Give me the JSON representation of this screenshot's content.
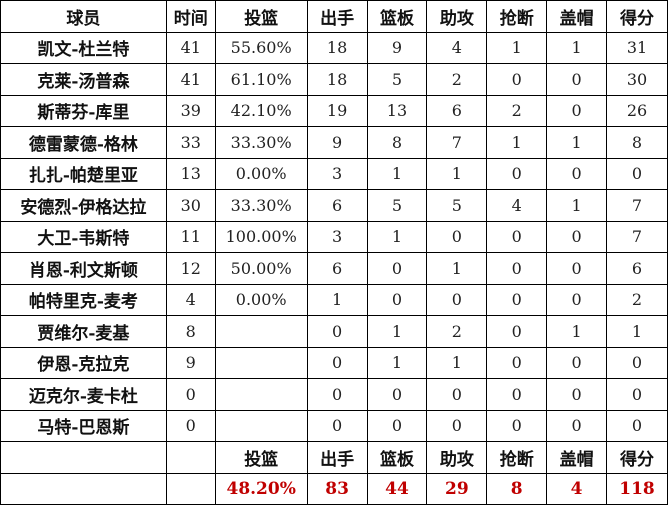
{
  "headers": [
    "球员",
    "时间",
    "投篮",
    "出手",
    "篮板",
    "助攻",
    "抢断",
    "盖帽",
    "得分"
  ],
  "rows": [
    [
      "凯文-杜兰特",
      "41",
      "55.60%",
      "18",
      "9",
      "4",
      "1",
      "1",
      "31"
    ],
    [
      "克莱-汤普森",
      "41",
      "61.10%",
      "18",
      "5",
      "2",
      "0",
      "0",
      "30"
    ],
    [
      "斯蒂芬-库里",
      "39",
      "42.10%",
      "19",
      "13",
      "6",
      "2",
      "0",
      "26"
    ],
    [
      "德雷蒙德-格林",
      "33",
      "33.30%",
      "9",
      "8",
      "7",
      "1",
      "1",
      "8"
    ],
    [
      "扎扎-帕楚里亚",
      "13",
      "0.00%",
      "3",
      "1",
      "1",
      "0",
      "0",
      "0"
    ],
    [
      "安德烈-伊格达拉",
      "30",
      "33.30%",
      "6",
      "5",
      "5",
      "4",
      "1",
      "7"
    ],
    [
      "大卫-韦斯特",
      "11",
      "100.00%",
      "3",
      "1",
      "0",
      "0",
      "0",
      "7"
    ],
    [
      "肖恩-利文斯顿",
      "12",
      "50.00%",
      "6",
      "0",
      "1",
      "0",
      "0",
      "6"
    ],
    [
      "帕特里克-麦考",
      "4",
      "0.00%",
      "1",
      "0",
      "0",
      "0",
      "0",
      "2"
    ],
    [
      "贾维尔-麦基",
      "8",
      "",
      "0",
      "1",
      "2",
      "0",
      "1",
      "1"
    ],
    [
      "伊恩-克拉克",
      "9",
      "",
      "0",
      "1",
      "1",
      "0",
      "0",
      "0"
    ],
    [
      "迈克尔-麦卡杜",
      "0",
      "",
      "0",
      "0",
      "0",
      "0",
      "0",
      "0"
    ],
    [
      "马特-巴恩斯",
      "0",
      "",
      "0",
      "0",
      "0",
      "0",
      "0",
      "0"
    ]
  ],
  "totals_header": [
    "",
    "",
    "投篮",
    "出手",
    "篮板",
    "助攻",
    "抢断",
    "盖帽",
    "得分"
  ],
  "totals": [
    "",
    "",
    "48.20%",
    "83",
    "44",
    "29",
    "8",
    "4",
    "118"
  ],
  "colors": {
    "total_text": "#c00000",
    "border": "#000000"
  }
}
